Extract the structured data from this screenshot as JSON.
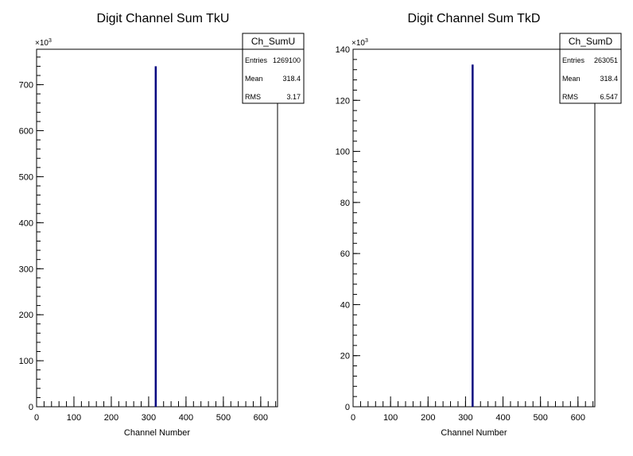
{
  "chart_data": [
    {
      "type": "bar",
      "title": "Digit Channel Sum TkU",
      "xlabel": "Channel Number",
      "ylabel": "",
      "y_multiplier_label": "×10",
      "y_multiplier_exp": "3",
      "xlim": [
        0,
        645
      ],
      "ylim": [
        0,
        777
      ],
      "x_ticks": [
        0,
        100,
        200,
        300,
        400,
        500,
        600
      ],
      "y_ticks": [
        0,
        100,
        200,
        300,
        400,
        500,
        600,
        700
      ],
      "bins": [
        {
          "x": 318.4,
          "value": 740
        }
      ],
      "series_color": "#000080",
      "stats": {
        "name": "Ch_SumU",
        "rows": [
          {
            "label": "Entries",
            "value": "1269100"
          },
          {
            "label": "Mean",
            "value": "318.4"
          },
          {
            "label": "RMS",
            "value": "3.17"
          }
        ]
      }
    },
    {
      "type": "bar",
      "title": "Digit Channel Sum TkD",
      "xlabel": "Channel Number",
      "ylabel": "",
      "y_multiplier_label": "×10",
      "y_multiplier_exp": "3",
      "xlim": [
        0,
        645
      ],
      "ylim": [
        0,
        140
      ],
      "x_ticks": [
        0,
        100,
        200,
        300,
        400,
        500,
        600
      ],
      "y_ticks": [
        0,
        20,
        40,
        60,
        80,
        100,
        120,
        140
      ],
      "bins": [
        {
          "x": 318.4,
          "value": 134
        }
      ],
      "series_color": "#000080",
      "stats": {
        "name": "Ch_SumD",
        "rows": [
          {
            "label": "Entries",
            "value": "263051"
          },
          {
            "label": "Mean",
            "value": "318.4"
          },
          {
            "label": "RMS",
            "value": "6.547"
          }
        ]
      }
    }
  ]
}
